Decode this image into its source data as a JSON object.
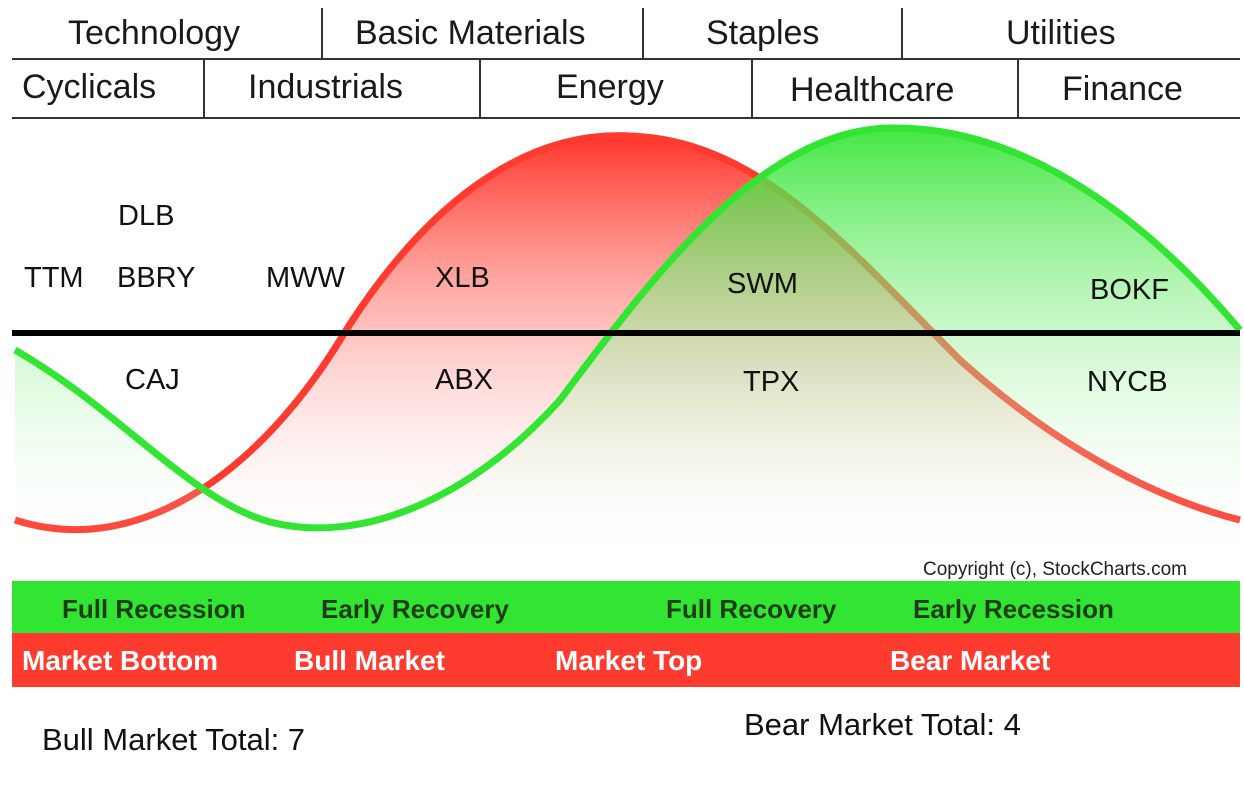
{
  "colors": {
    "bull_curve": "#ff3b2f",
    "bear_curve": "#33e533",
    "bar_green": "#33e533",
    "bar_red": "#ff3b2f",
    "zero_line": "#000000"
  },
  "sectors": {
    "row1": [
      "Technology",
      "Basic Materials",
      "Staples",
      "Utilities"
    ],
    "row2": [
      "Cyclicals",
      "Industrials",
      "Energy",
      "Healthcare",
      "Finance"
    ]
  },
  "tickers": [
    "DLB",
    "TTM",
    "BBRY",
    "MWW",
    "XLB",
    "SWM",
    "BOKF",
    "CAJ",
    "ABX",
    "TPX",
    "NYCB"
  ],
  "copyright": "Copyright (c), StockCharts.com",
  "economic_phases": [
    "Full Recession",
    "Early Recovery",
    "Full Recovery",
    "Early Recession"
  ],
  "market_phases": [
    "Market Bottom",
    "Bull Market",
    "Market Top",
    "Bear Market"
  ],
  "totals": {
    "bull": "Bull Market Total: 7",
    "bear": "Bear Market Total: 4"
  }
}
